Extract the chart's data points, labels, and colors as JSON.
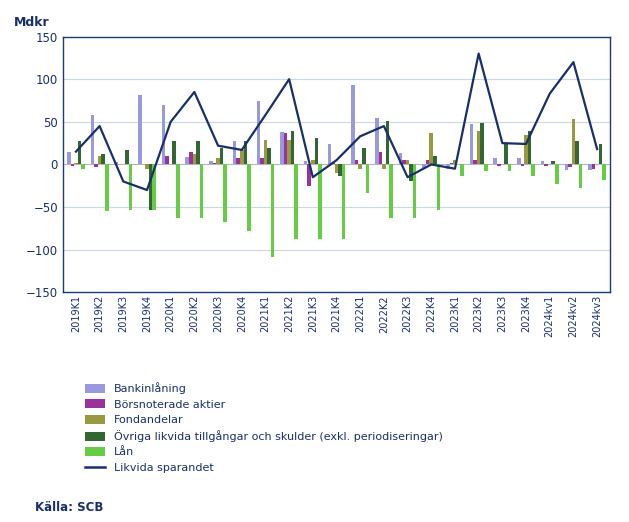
{
  "categories": [
    "2019K1",
    "2019K2",
    "2019K3",
    "2019K4",
    "2020K1",
    "2020K2",
    "2020K3",
    "2020K4",
    "2021K1",
    "2021K2",
    "2021K3",
    "2021K4",
    "2022K1",
    "2022K2",
    "2022K3",
    "2022K4",
    "2023K1",
    "2023K2",
    "2023K3",
    "2023K4",
    "2024kv1",
    "2024kv2",
    "2024kv3"
  ],
  "bankinlaning": [
    15,
    58,
    3,
    82,
    70,
    9,
    4,
    27,
    74,
    38,
    4,
    24,
    93,
    54,
    13,
    -5,
    -5,
    47,
    8,
    7,
    4,
    -6,
    -6
  ],
  "borsnoterade_aktier": [
    -2,
    -3,
    0,
    0,
    10,
    14,
    2,
    8,
    8,
    37,
    -25,
    2,
    5,
    15,
    5,
    5,
    2,
    5,
    -2,
    -2,
    -2,
    -3,
    -5
  ],
  "fondandelar": [
    2,
    10,
    0,
    -5,
    0,
    12,
    8,
    17,
    29,
    29,
    5,
    -10,
    -5,
    -5,
    5,
    37,
    5,
    39,
    0,
    34,
    0,
    53,
    0
  ],
  "ovriga_likvida": [
    27,
    12,
    17,
    -53,
    27,
    27,
    19,
    27,
    19,
    39,
    31,
    -14,
    19,
    51,
    -19,
    10,
    0,
    49,
    24,
    39,
    4,
    27,
    24
  ],
  "lan": [
    -5,
    -55,
    -53,
    -53,
    -63,
    -63,
    -68,
    -78,
    -108,
    -88,
    -88,
    -88,
    -33,
    -63,
    -63,
    -53,
    -13,
    -8,
    -8,
    -13,
    -23,
    -28,
    -18
  ],
  "likvida_sparandet": [
    15,
    45,
    -20,
    -30,
    50,
    85,
    22,
    17,
    58,
    100,
    -15,
    5,
    33,
    45,
    -15,
    0,
    -5,
    130,
    25,
    24,
    83,
    120,
    18
  ],
  "colors": {
    "bankinlaning": "#9999dd",
    "borsnoterade_aktier": "#993399",
    "fondandelar": "#999944",
    "ovriga_likvida": "#336633",
    "lan": "#66cc44",
    "likvida_sparandet": "#1a2f6a"
  },
  "ylim": [
    -150,
    150
  ],
  "yticks": [
    -150,
    -100,
    -50,
    0,
    50,
    100,
    150
  ],
  "ylabel": "Mdkr",
  "source": "Källa: SCB",
  "legend": [
    "Bankinlåning",
    "Börsnoterade aktier",
    "Fondandelar",
    "Övriga likvida tillgångar och skulder (exkl. periodiseringar)",
    "Lån",
    "Likvida sparandet"
  ],
  "bar_width": 0.75,
  "background_color": "#ffffff",
  "grid_color": "#c8d8e8",
  "border_color": "#1a3a7a"
}
